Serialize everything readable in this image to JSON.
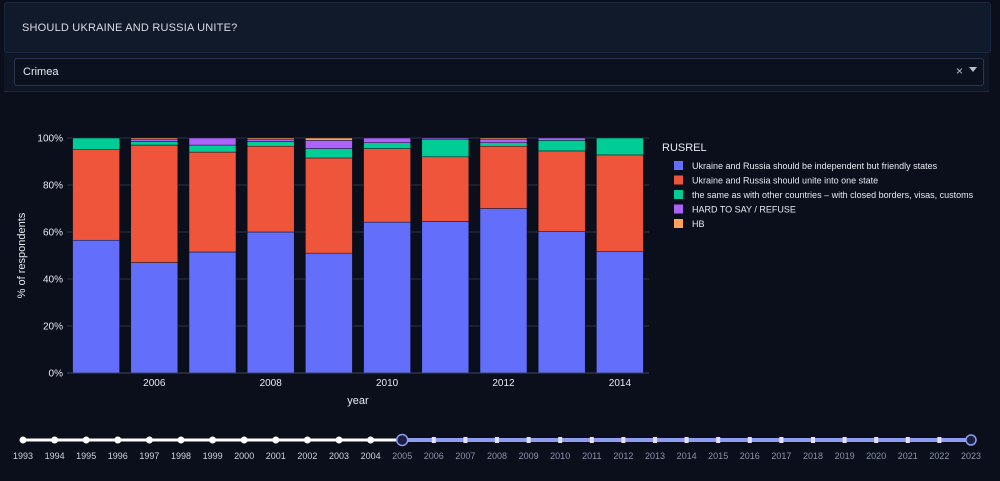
{
  "header": {
    "title": "SHOULD UKRAINE AND RUSSIA UNITE?"
  },
  "region_select": {
    "value": "Crimea",
    "clear_symbol": "×"
  },
  "colors": {
    "independent": "#636efa",
    "unite": "#ef553b",
    "same": "#00cc96",
    "hard": "#ab63fa",
    "hb": "#ffa15a"
  },
  "chart_data": {
    "type": "bar",
    "stacked": true,
    "xlabel": "year",
    "ylabel": "% of respondents",
    "x": [
      2005,
      2006,
      2007,
      2008,
      2009,
      2010,
      2011,
      2012,
      2013,
      2014
    ],
    "x_ticks": [
      2006,
      2008,
      2010,
      2012,
      2014
    ],
    "y_ticks": [
      "0%",
      "20%",
      "40%",
      "60%",
      "80%",
      "100%"
    ],
    "ylim": [
      0,
      100
    ],
    "legend_title": "RUSREL",
    "legend_position": "right",
    "series": [
      {
        "key": "independent",
        "name": "Ukraine and Russia should be independent but friendly states",
        "values": [
          56.5,
          47.0,
          51.5,
          60.0,
          51.0,
          64.2,
          64.5,
          70.0,
          60.3,
          51.8
        ]
      },
      {
        "key": "unite",
        "name": "Ukraine and Russia should unite into one state",
        "values": [
          38.5,
          50.0,
          42.5,
          36.5,
          40.5,
          31.3,
          27.5,
          26.5,
          34.2,
          41.0
        ]
      },
      {
        "key": "same",
        "name": "the same as with other countries – with closed borders, visas, customs",
        "values": [
          5.0,
          1.5,
          3.0,
          2.0,
          4.0,
          2.5,
          7.5,
          1.5,
          4.5,
          7.2
        ]
      },
      {
        "key": "hard",
        "name": "HARD TO SAY / REFUSE",
        "values": [
          0.0,
          1.0,
          3.0,
          1.0,
          3.5,
          2.0,
          0.5,
          1.5,
          1.0,
          0.0
        ]
      },
      {
        "key": "hb",
        "name": "HB",
        "values": [
          0.0,
          0.5,
          0.0,
          0.5,
          1.0,
          0.0,
          0.0,
          0.5,
          0.0,
          0.0
        ]
      }
    ]
  },
  "year_slider": {
    "years": [
      1993,
      1994,
      1995,
      1996,
      1997,
      1998,
      1999,
      2000,
      2001,
      2002,
      2003,
      2004,
      2005,
      2006,
      2007,
      2008,
      2009,
      2010,
      2011,
      2012,
      2013,
      2014,
      2015,
      2016,
      2017,
      2018,
      2019,
      2020,
      2021,
      2022,
      2023
    ],
    "range_start": 2005,
    "range_end": 2023
  }
}
